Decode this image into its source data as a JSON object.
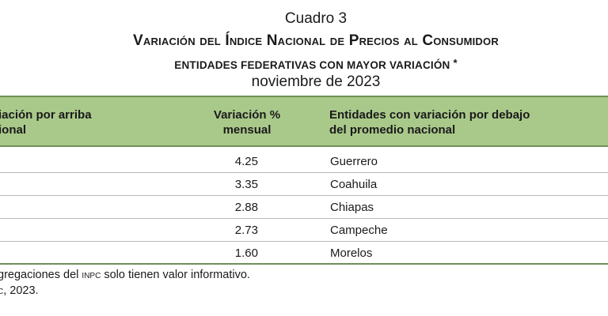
{
  "caption": {
    "cuadro": "Cuadro 3",
    "title": "Variación del Índice Nacional de Precios al Consumidor",
    "subtitle": "ENTIDADES FEDERATIVAS CON MAYOR VARIACIÓN",
    "subtitle_mark": "*",
    "date": "noviembre de 2023"
  },
  "table": {
    "headers": {
      "left": [
        "iación por arriba",
        "ional"
      ],
      "middle": [
        "Variación %",
        "mensual"
      ],
      "right": [
        "Entidades con variación por debajo",
        "del promedio nacional"
      ]
    },
    "rows": [
      {
        "left": "",
        "value": "4.25",
        "entity": "Guerrero"
      },
      {
        "left": "",
        "value": "3.35",
        "entity": "Coahuila"
      },
      {
        "left": "",
        "value": "2.88",
        "entity": "Chiapas"
      },
      {
        "left": "",
        "value": "2.73",
        "entity": "Campeche"
      },
      {
        "left": "",
        "value": "1.60",
        "entity": "Morelos"
      }
    ]
  },
  "notes": {
    "line1_prefix": "gregaciones del ",
    "line1_abbrev": "inpc",
    "line1_suffix": " solo tienen valor informativo.",
    "line2_abbrev": "c",
    "line2_suffix": ", 2023."
  },
  "colors": {
    "header_bg": "#a9c98a",
    "rule": "#6f8f57"
  }
}
